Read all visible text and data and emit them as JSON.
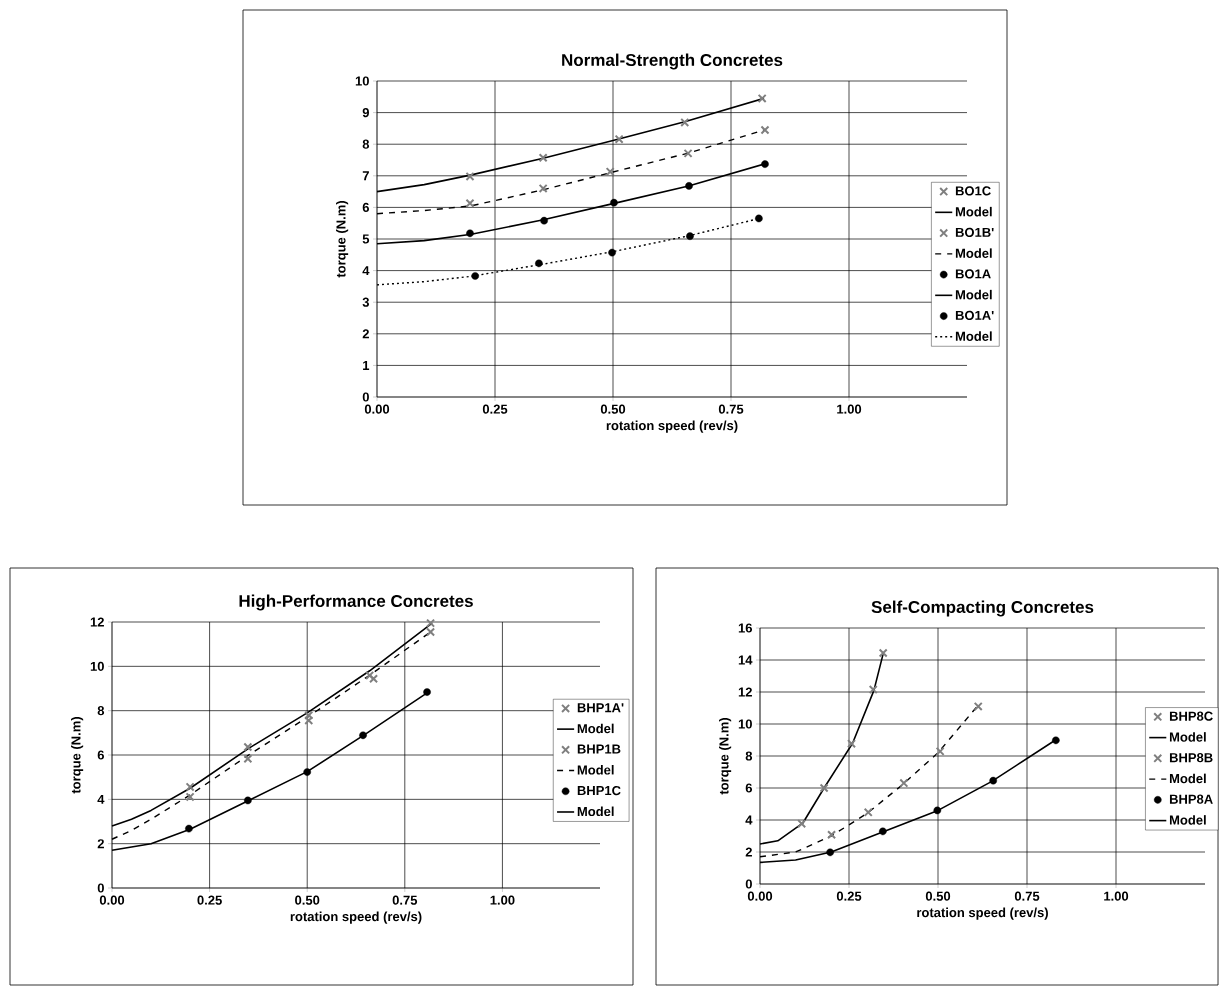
{
  "chart_data": [
    {
      "type": "scatter",
      "title": "Normal-Strength Concretes",
      "xlabel": "rotation speed (rev/s)",
      "ylabel": "torque (N.m)",
      "xlim": [
        0,
        1.25
      ],
      "xticks": [
        {
          "value": 0,
          "label": "0.00"
        },
        {
          "value": 0.25,
          "label": "0.25"
        },
        {
          "value": 0.5,
          "label": "0.50"
        },
        {
          "value": 0.75,
          "label": "0.75"
        },
        {
          "value": 1,
          "label": "1.00"
        }
      ],
      "ylim": [
        0,
        10
      ],
      "yticks": [
        0,
        1,
        2,
        3,
        4,
        5,
        6,
        7,
        8,
        9,
        10
      ],
      "grid": true,
      "legend": "right",
      "series": [
        {
          "name": "BO1C",
          "color": "#7f7f7f",
          "marker": "cross",
          "x": [
            0.197,
            0.352,
            0.513,
            0.652,
            0.816
          ],
          "values": [
            6.98,
            7.57,
            8.16,
            8.69,
            9.45
          ]
        },
        {
          "name": "Model",
          "type": "line",
          "color": "#000000",
          "marker": "none",
          "line_style": "solid",
          "x": [
            0,
            0.1,
            0.2,
            0.35,
            0.5,
            0.65,
            0.82
          ],
          "values": [
            6.5,
            6.72,
            7.03,
            7.55,
            8.12,
            8.7,
            9.45
          ]
        },
        {
          "name": "BO1B'",
          "color": "#7f7f7f",
          "marker": "cross",
          "x": [
            0.197,
            0.352,
            0.494,
            0.659,
            0.822
          ],
          "values": [
            6.13,
            6.6,
            7.13,
            7.71,
            8.45
          ]
        },
        {
          "name": "Model",
          "type": "line",
          "color": "#000000",
          "marker": "none",
          "line_style": "dashed",
          "x": [
            0,
            0.1,
            0.2,
            0.35,
            0.5,
            0.66,
            0.82
          ],
          "values": [
            5.8,
            5.9,
            6.05,
            6.55,
            7.12,
            7.72,
            8.45
          ]
        },
        {
          "name": "BO1A",
          "color": "#000000",
          "marker": "circle",
          "x": [
            0.197,
            0.354,
            0.502,
            0.661,
            0.822
          ],
          "values": [
            5.18,
            5.58,
            6.15,
            6.68,
            7.37
          ]
        },
        {
          "name": "Model",
          "type": "line",
          "color": "#000000",
          "marker": "none",
          "line_style": "solid",
          "x": [
            0,
            0.1,
            0.2,
            0.35,
            0.5,
            0.66,
            0.82
          ],
          "values": [
            4.85,
            4.95,
            5.15,
            5.6,
            6.12,
            6.68,
            7.37
          ]
        },
        {
          "name": "BO1A'",
          "color": "#000000",
          "marker": "circle",
          "x": [
            0.208,
            0.343,
            0.498,
            0.663,
            0.809
          ],
          "values": [
            3.83,
            4.23,
            4.57,
            5.09,
            5.65
          ]
        },
        {
          "name": "Model",
          "type": "line",
          "color": "#000000",
          "marker": "none",
          "line_style": "dotted",
          "x": [
            0,
            0.1,
            0.2,
            0.35,
            0.5,
            0.66,
            0.81
          ],
          "values": [
            3.55,
            3.65,
            3.82,
            4.2,
            4.6,
            5.1,
            5.65
          ]
        }
      ]
    },
    {
      "type": "scatter",
      "title": "High-Performance Concretes",
      "xlabel": "rotation speed (rev/s)",
      "ylabel": "torque (N.m)",
      "xlim": [
        0,
        1.25
      ],
      "xticks": [
        {
          "value": 0,
          "label": "0.00"
        },
        {
          "value": 0.25,
          "label": "0.25"
        },
        {
          "value": 0.5,
          "label": "0.50"
        },
        {
          "value": 0.75,
          "label": "0.75"
        },
        {
          "value": 1,
          "label": "1.00"
        }
      ],
      "ylim": [
        0,
        12
      ],
      "yticks": [
        0,
        2,
        4,
        6,
        8,
        10,
        12
      ],
      "grid": true,
      "legend": "right",
      "series": [
        {
          "name": "BHP1A'",
          "color": "#7f7f7f",
          "marker": "cross",
          "x": [
            0.2,
            0.348,
            0.504,
            0.66,
            0.816
          ],
          "values": [
            4.56,
            6.36,
            7.79,
            9.59,
            11.95
          ]
        },
        {
          "name": "Model",
          "type": "line",
          "color": "#000000",
          "marker": "none",
          "line_style": "solid",
          "x": [
            0,
            0.05,
            0.1,
            0.2,
            0.35,
            0.5,
            0.66,
            0.82
          ],
          "values": [
            2.8,
            3.1,
            3.5,
            4.5,
            6.3,
            7.9,
            9.8,
            11.95
          ]
        },
        {
          "name": "BHP1B",
          "color": "#7f7f7f",
          "marker": "cross",
          "x": [
            0.2,
            0.348,
            0.504,
            0.67,
            0.816
          ],
          "values": [
            4.11,
            5.83,
            7.56,
            9.44,
            11.55
          ]
        },
        {
          "name": "Model",
          "type": "line",
          "color": "#000000",
          "marker": "none",
          "line_style": "dashed",
          "x": [
            0,
            0.05,
            0.1,
            0.2,
            0.35,
            0.5,
            0.66,
            0.82
          ],
          "values": [
            2.2,
            2.6,
            3.1,
            4.2,
            6.0,
            7.7,
            9.6,
            11.6
          ]
        },
        {
          "name": "BHP1C",
          "color": "#000000",
          "marker": "circle",
          "x": [
            0.197,
            0.348,
            0.5,
            0.643,
            0.807
          ],
          "values": [
            2.68,
            3.95,
            5.23,
            6.89,
            8.84
          ]
        },
        {
          "name": "Model",
          "type": "line",
          "color": "#000000",
          "marker": "none",
          "line_style": "solid",
          "x": [
            0,
            0.05,
            0.1,
            0.2,
            0.35,
            0.5,
            0.65,
            0.81
          ],
          "values": [
            1.7,
            1.85,
            2.0,
            2.65,
            3.95,
            5.25,
            6.95,
            8.84
          ]
        }
      ]
    },
    {
      "type": "scatter",
      "title": "Self-Compacting Concretes",
      "xlabel": "rotation speed (rev/s)",
      "ylabel": "torque (N.m)",
      "xlim": [
        0,
        1.25
      ],
      "xticks": [
        {
          "value": 0,
          "label": "0.00"
        },
        {
          "value": 0.25,
          "label": "0.25"
        },
        {
          "value": 0.5,
          "label": "0.50"
        },
        {
          "value": 0.75,
          "label": "0.75"
        },
        {
          "value": 1,
          "label": "1.00"
        }
      ],
      "ylim": [
        0,
        16
      ],
      "yticks": [
        0,
        2,
        4,
        6,
        8,
        10,
        12,
        14,
        16
      ],
      "grid": true,
      "legend": "right",
      "series": [
        {
          "name": "BHP8C",
          "color": "#7f7f7f",
          "marker": "cross",
          "x": [
            0.117,
            0.18,
            0.257,
            0.318,
            0.346
          ],
          "values": [
            3.77,
            6.0,
            8.77,
            12.15,
            14.44
          ]
        },
        {
          "name": "Model",
          "type": "line",
          "color": "#000000",
          "marker": "none",
          "line_style": "solid",
          "x": [
            0,
            0.05,
            0.12,
            0.18,
            0.26,
            0.32,
            0.346
          ],
          "values": [
            2.5,
            2.7,
            3.8,
            6.0,
            8.8,
            12.1,
            14.4
          ]
        },
        {
          "name": "BHP8B",
          "color": "#7f7f7f",
          "marker": "cross",
          "x": [
            0.201,
            0.304,
            0.404,
            0.506,
            0.613
          ],
          "values": [
            3.08,
            4.48,
            6.31,
            8.29,
            11.1
          ]
        },
        {
          "name": "Model",
          "type": "line",
          "color": "#000000",
          "marker": "none",
          "line_style": "dashed",
          "x": [
            0,
            0.1,
            0.2,
            0.3,
            0.4,
            0.5,
            0.61
          ],
          "values": [
            1.7,
            2.0,
            3.0,
            4.4,
            6.2,
            8.2,
            11.1
          ]
        },
        {
          "name": "BHP8A",
          "color": "#000000",
          "marker": "circle",
          "x": [
            0.197,
            0.345,
            0.498,
            0.655,
            0.831
          ],
          "values": [
            1.98,
            3.29,
            4.6,
            6.46,
            8.98
          ]
        },
        {
          "name": "Model",
          "type": "line",
          "color": "#000000",
          "marker": "none",
          "line_style": "solid",
          "x": [
            0,
            0.1,
            0.2,
            0.35,
            0.5,
            0.65,
            0.83
          ],
          "values": [
            1.35,
            1.5,
            2.0,
            3.3,
            4.6,
            6.4,
            9.0
          ]
        }
      ]
    }
  ]
}
